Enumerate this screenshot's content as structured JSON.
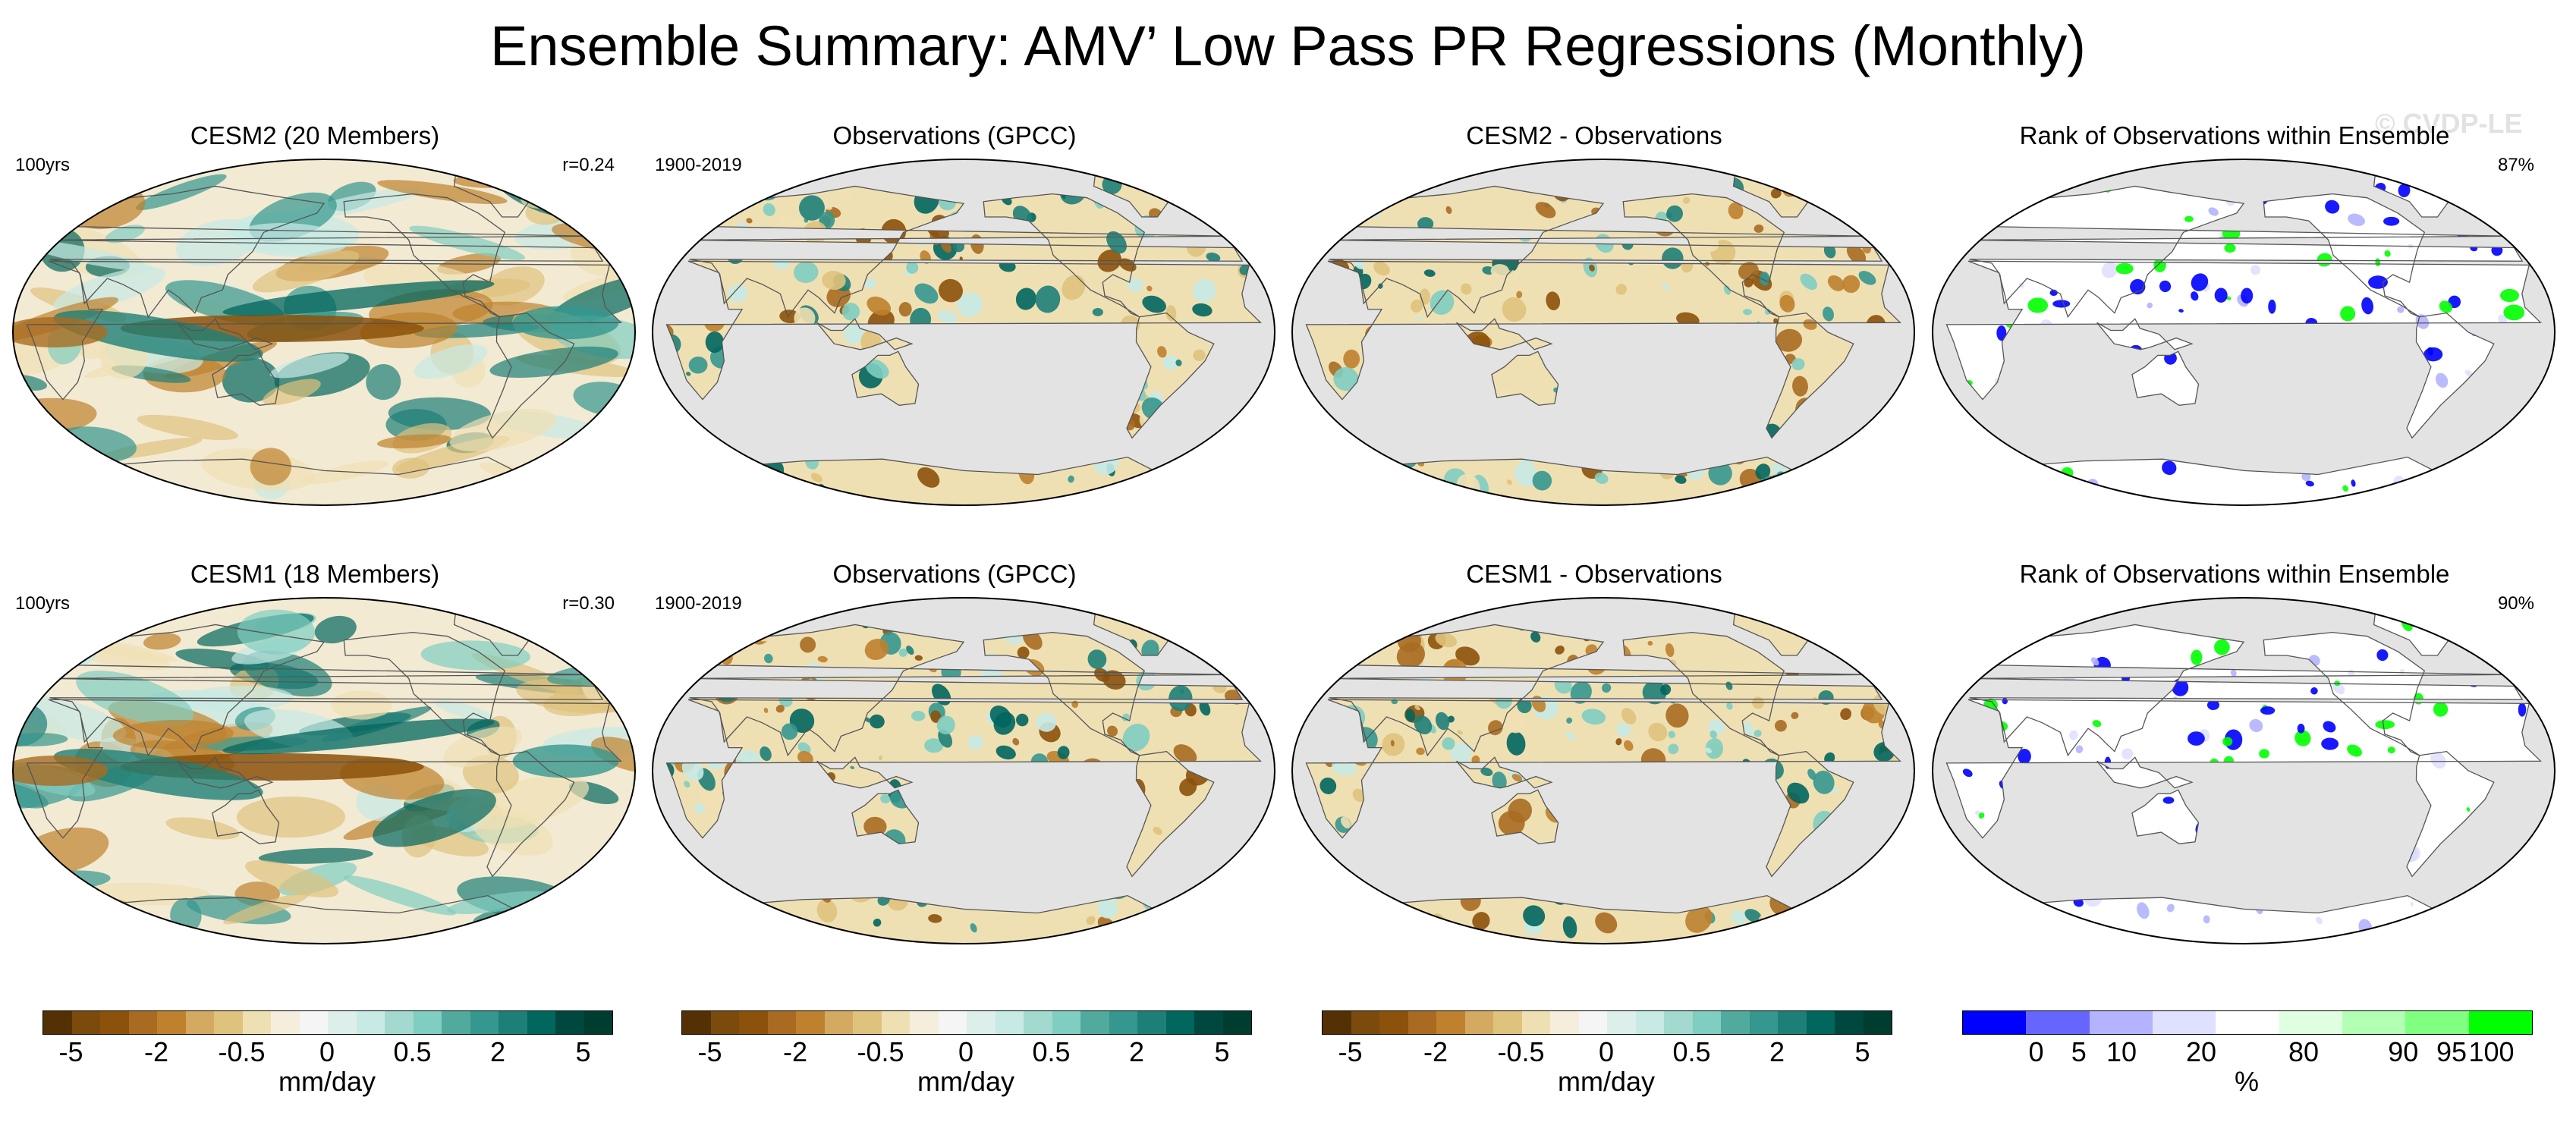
{
  "title": "Ensemble Summary: AMV’ Low Pass PR Regressions (Monthly)",
  "watermark": "© CVDP-LE",
  "panels": [
    {
      "title": "CESM2 (20 Members)",
      "left_label": "100yrs",
      "right_label": "r=0.24",
      "kind": "model"
    },
    {
      "title": "Observations (GPCC)",
      "left_label": "1900-2019",
      "right_label": "",
      "kind": "obs"
    },
    {
      "title": "CESM2 - Observations",
      "left_label": "",
      "right_label": "",
      "kind": "diff"
    },
    {
      "title": "Rank of Observations within Ensemble",
      "left_label": "",
      "right_label": "87%",
      "kind": "rank"
    },
    {
      "title": "CESM1 (18 Members)",
      "left_label": "100yrs",
      "right_label": "r=0.30",
      "kind": "model"
    },
    {
      "title": "Observations (GPCC)",
      "left_label": "1900-2019",
      "right_label": "",
      "kind": "obs"
    },
    {
      "title": "CESM1 - Observations",
      "left_label": "",
      "right_label": "",
      "kind": "diff"
    },
    {
      "title": "Rank of Observations within Ensemble",
      "left_label": "",
      "right_label": "90%",
      "kind": "rank"
    }
  ],
  "colorbars": [
    {
      "unit": "mm/day",
      "ticks": [
        "-5",
        "-2",
        "-0.5",
        "0",
        "0.5",
        "2",
        "5"
      ]
    },
    {
      "unit": "mm/day",
      "ticks": [
        "-5",
        "-2",
        "-0.5",
        "0",
        "0.5",
        "2",
        "5"
      ]
    },
    {
      "unit": "mm/day",
      "ticks": [
        "-5",
        "-2",
        "-0.5",
        "0",
        "0.5",
        "2",
        "5"
      ]
    },
    {
      "unit": "%",
      "ticks": [
        "0",
        "5",
        "10",
        "20",
        "80",
        "90",
        "95",
        "100"
      ]
    }
  ],
  "chart_data": {
    "type": "heatmap",
    "description_note": "Global precipitation regression maps (Robinson-like projection, Pacific-centred)",
    "diverging_colors": [
      "#543005",
      "#7b4a0d",
      "#8c510a",
      "#a96b22",
      "#bf812d",
      "#d4a961",
      "#dfc27d",
      "#efe0b4",
      "#f6eedc",
      "#f5f5f5",
      "#dcefea",
      "#c7eae5",
      "#a3d9cf",
      "#80cdc1",
      "#52a99e",
      "#35978f",
      "#1e7f77",
      "#01665e",
      "#00483f",
      "#003c30"
    ],
    "rank_colors": [
      "#0000ff",
      "#6666ff",
      "#b3b3ff",
      "#e0e0ff",
      "#ffffff",
      "#e0ffe0",
      "#b3ffb3",
      "#80ff80",
      "#00ff00"
    ],
    "land_mask_color": "#e3e3e3"
  }
}
